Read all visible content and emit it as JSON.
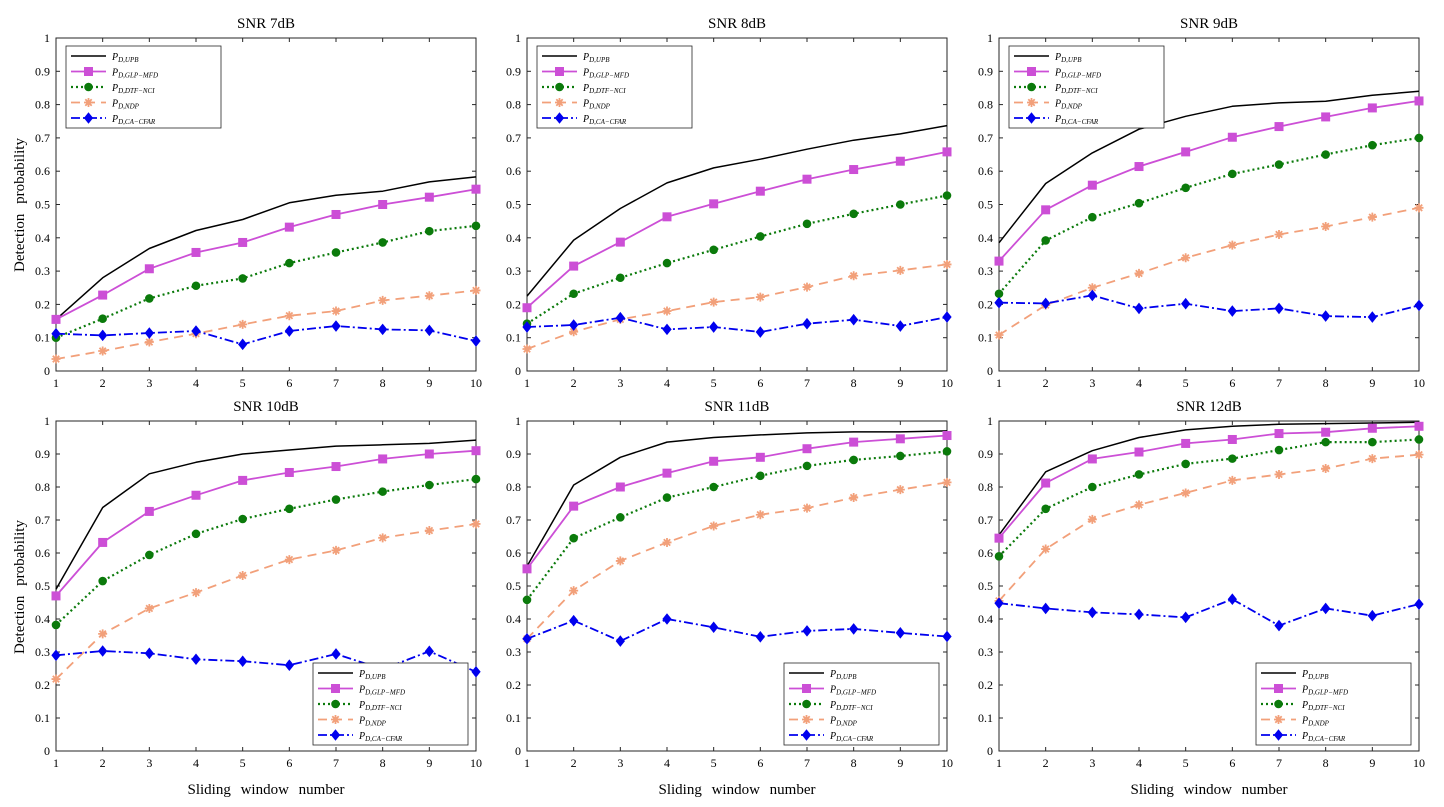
{
  "figure": {
    "xlabel": "Sliding   window   number",
    "ylabel": "Detection   probability"
  },
  "legend_entries": [
    {
      "main": "P",
      "sub": "D,UPB"
    },
    {
      "main": "P",
      "sub": "D,GLP−MFD"
    },
    {
      "main": "P",
      "sub": "D,DTF−NCI"
    },
    {
      "main": "P",
      "sub": "D,NDP"
    },
    {
      "main": "P",
      "sub": "D,CA−CFAR"
    }
  ],
  "series_styles": [
    {
      "color": "#000000",
      "dash": "",
      "marker": "none",
      "width": 1.5
    },
    {
      "color": "#cc4fd6",
      "dash": "",
      "marker": "square",
      "width": 1.8
    },
    {
      "color": "#0b7a0b",
      "dash": "2,3",
      "marker": "circle",
      "width": 2.2
    },
    {
      "color": "#f2a07a",
      "dash": "9,6",
      "marker": "star",
      "width": 1.8
    },
    {
      "color": "#0000ee",
      "dash": "9,3,2,3",
      "marker": "diamond",
      "width": 1.8
    }
  ],
  "chart_data": [
    {
      "type": "line",
      "title": "SNR 7dB",
      "x": [
        1,
        2,
        3,
        4,
        5,
        6,
        7,
        8,
        9,
        10
      ],
      "xlim": [
        1,
        10
      ],
      "ylim": [
        0,
        1
      ],
      "legend": "top-left",
      "series": [
        {
          "name": "P_D,UPB",
          "values": [
            0.155,
            0.28,
            0.368,
            0.422,
            0.455,
            0.505,
            0.528,
            0.54,
            0.568,
            0.583
          ]
        },
        {
          "name": "P_D,GLP-MFD",
          "values": [
            0.155,
            0.228,
            0.307,
            0.356,
            0.386,
            0.432,
            0.47,
            0.5,
            0.522,
            0.546
          ]
        },
        {
          "name": "P_D,DTF-NCI",
          "values": [
            0.1,
            0.157,
            0.218,
            0.256,
            0.278,
            0.324,
            0.356,
            0.386,
            0.42,
            0.436
          ]
        },
        {
          "name": "P_D,NDP",
          "values": [
            0.036,
            0.06,
            0.087,
            0.112,
            0.14,
            0.166,
            0.18,
            0.212,
            0.226,
            0.242
          ]
        },
        {
          "name": "P_D,CA-CFAR",
          "values": [
            0.112,
            0.107,
            0.114,
            0.12,
            0.08,
            0.12,
            0.135,
            0.125,
            0.122,
            0.09
          ]
        }
      ]
    },
    {
      "type": "line",
      "title": "SNR 8dB",
      "x": [
        1,
        2,
        3,
        4,
        5,
        6,
        7,
        8,
        9,
        10
      ],
      "xlim": [
        1,
        10
      ],
      "ylim": [
        0,
        1
      ],
      "legend": "top-left",
      "series": [
        {
          "name": "P_D,UPB",
          "values": [
            0.225,
            0.393,
            0.488,
            0.565,
            0.61,
            0.636,
            0.666,
            0.693,
            0.712,
            0.737
          ]
        },
        {
          "name": "P_D,GLP-MFD",
          "values": [
            0.19,
            0.315,
            0.387,
            0.463,
            0.502,
            0.54,
            0.576,
            0.605,
            0.63,
            0.658
          ]
        },
        {
          "name": "P_D,DTF-NCI",
          "values": [
            0.142,
            0.232,
            0.28,
            0.324,
            0.364,
            0.404,
            0.442,
            0.472,
            0.5,
            0.527
          ]
        },
        {
          "name": "P_D,NDP",
          "values": [
            0.066,
            0.118,
            0.155,
            0.18,
            0.207,
            0.222,
            0.252,
            0.286,
            0.302,
            0.32
          ]
        },
        {
          "name": "P_D,CA-CFAR",
          "values": [
            0.132,
            0.138,
            0.16,
            0.125,
            0.132,
            0.117,
            0.142,
            0.154,
            0.135,
            0.162
          ]
        }
      ]
    },
    {
      "type": "line",
      "title": "SNR 9dB",
      "x": [
        1,
        2,
        3,
        4,
        5,
        6,
        7,
        8,
        9,
        10
      ],
      "xlim": [
        1,
        10
      ],
      "ylim": [
        0,
        1
      ],
      "legend": "top-left",
      "series": [
        {
          "name": "P_D,UPB",
          "values": [
            0.385,
            0.563,
            0.655,
            0.726,
            0.765,
            0.795,
            0.805,
            0.81,
            0.828,
            0.84
          ]
        },
        {
          "name": "P_D,GLP-MFD",
          "values": [
            0.33,
            0.484,
            0.558,
            0.614,
            0.658,
            0.702,
            0.734,
            0.763,
            0.79,
            0.811
          ]
        },
        {
          "name": "P_D,DTF-NCI",
          "values": [
            0.232,
            0.392,
            0.462,
            0.504,
            0.55,
            0.592,
            0.62,
            0.65,
            0.678,
            0.7
          ]
        },
        {
          "name": "P_D,NDP",
          "values": [
            0.108,
            0.198,
            0.25,
            0.293,
            0.34,
            0.378,
            0.41,
            0.434,
            0.462,
            0.49
          ]
        },
        {
          "name": "P_D,CA-CFAR",
          "values": [
            0.205,
            0.203,
            0.227,
            0.188,
            0.202,
            0.18,
            0.188,
            0.165,
            0.162,
            0.197
          ]
        }
      ]
    },
    {
      "type": "line",
      "title": "SNR 10dB",
      "x": [
        1,
        2,
        3,
        4,
        5,
        6,
        7,
        8,
        9,
        10
      ],
      "xlim": [
        1,
        10
      ],
      "ylim": [
        0,
        1
      ],
      "legend": "bottom-right",
      "series": [
        {
          "name": "P_D,UPB",
          "values": [
            0.49,
            0.738,
            0.84,
            0.875,
            0.9,
            0.912,
            0.924,
            0.928,
            0.932,
            0.942
          ]
        },
        {
          "name": "P_D,GLP-MFD",
          "values": [
            0.47,
            0.632,
            0.726,
            0.775,
            0.82,
            0.844,
            0.862,
            0.885,
            0.9,
            0.91
          ]
        },
        {
          "name": "P_D,DTF-NCI",
          "values": [
            0.382,
            0.515,
            0.594,
            0.658,
            0.703,
            0.734,
            0.762,
            0.786,
            0.806,
            0.824
          ]
        },
        {
          "name": "P_D,NDP",
          "values": [
            0.218,
            0.355,
            0.432,
            0.48,
            0.532,
            0.58,
            0.608,
            0.646,
            0.668,
            0.688
          ]
        },
        {
          "name": "P_D,CA-CFAR",
          "values": [
            0.29,
            0.303,
            0.296,
            0.278,
            0.272,
            0.26,
            0.294,
            0.248,
            0.302,
            0.24
          ]
        }
      ]
    },
    {
      "type": "line",
      "title": "SNR 11dB",
      "x": [
        1,
        2,
        3,
        4,
        5,
        6,
        7,
        8,
        9,
        10
      ],
      "xlim": [
        1,
        10
      ],
      "ylim": [
        0,
        1
      ],
      "legend": "bottom-right",
      "series": [
        {
          "name": "P_D,UPB",
          "values": [
            0.56,
            0.806,
            0.89,
            0.936,
            0.95,
            0.958,
            0.964,
            0.967,
            0.967,
            0.97
          ]
        },
        {
          "name": "P_D,GLP-MFD",
          "values": [
            0.552,
            0.742,
            0.8,
            0.842,
            0.878,
            0.89,
            0.916,
            0.936,
            0.946,
            0.956
          ]
        },
        {
          "name": "P_D,DTF-NCI",
          "values": [
            0.458,
            0.645,
            0.708,
            0.768,
            0.8,
            0.834,
            0.864,
            0.882,
            0.894,
            0.908
          ]
        },
        {
          "name": "P_D,NDP",
          "values": [
            0.34,
            0.486,
            0.576,
            0.632,
            0.682,
            0.716,
            0.736,
            0.768,
            0.792,
            0.814
          ]
        },
        {
          "name": "P_D,CA-CFAR",
          "values": [
            0.34,
            0.395,
            0.333,
            0.4,
            0.375,
            0.346,
            0.364,
            0.37,
            0.358,
            0.347
          ]
        }
      ]
    },
    {
      "type": "line",
      "title": "SNR 12dB",
      "x": [
        1,
        2,
        3,
        4,
        5,
        6,
        7,
        8,
        9,
        10
      ],
      "xlim": [
        1,
        10
      ],
      "ylim": [
        0,
        1
      ],
      "legend": "bottom-right",
      "series": [
        {
          "name": "P_D,UPB",
          "values": [
            0.655,
            0.846,
            0.91,
            0.95,
            0.973,
            0.984,
            0.99,
            0.992,
            0.994,
            0.996
          ]
        },
        {
          "name": "P_D,GLP-MFD",
          "values": [
            0.645,
            0.812,
            0.885,
            0.906,
            0.932,
            0.944,
            0.962,
            0.966,
            0.978,
            0.984
          ]
        },
        {
          "name": "P_D,DTF-NCI",
          "values": [
            0.59,
            0.734,
            0.8,
            0.838,
            0.87,
            0.886,
            0.912,
            0.936,
            0.936,
            0.944
          ]
        },
        {
          "name": "P_D,NDP",
          "values": [
            0.455,
            0.612,
            0.702,
            0.746,
            0.782,
            0.82,
            0.838,
            0.856,
            0.886,
            0.898
          ]
        },
        {
          "name": "P_D,CA-CFAR",
          "values": [
            0.448,
            0.432,
            0.42,
            0.414,
            0.405,
            0.46,
            0.38,
            0.432,
            0.41,
            0.445
          ]
        }
      ]
    }
  ]
}
